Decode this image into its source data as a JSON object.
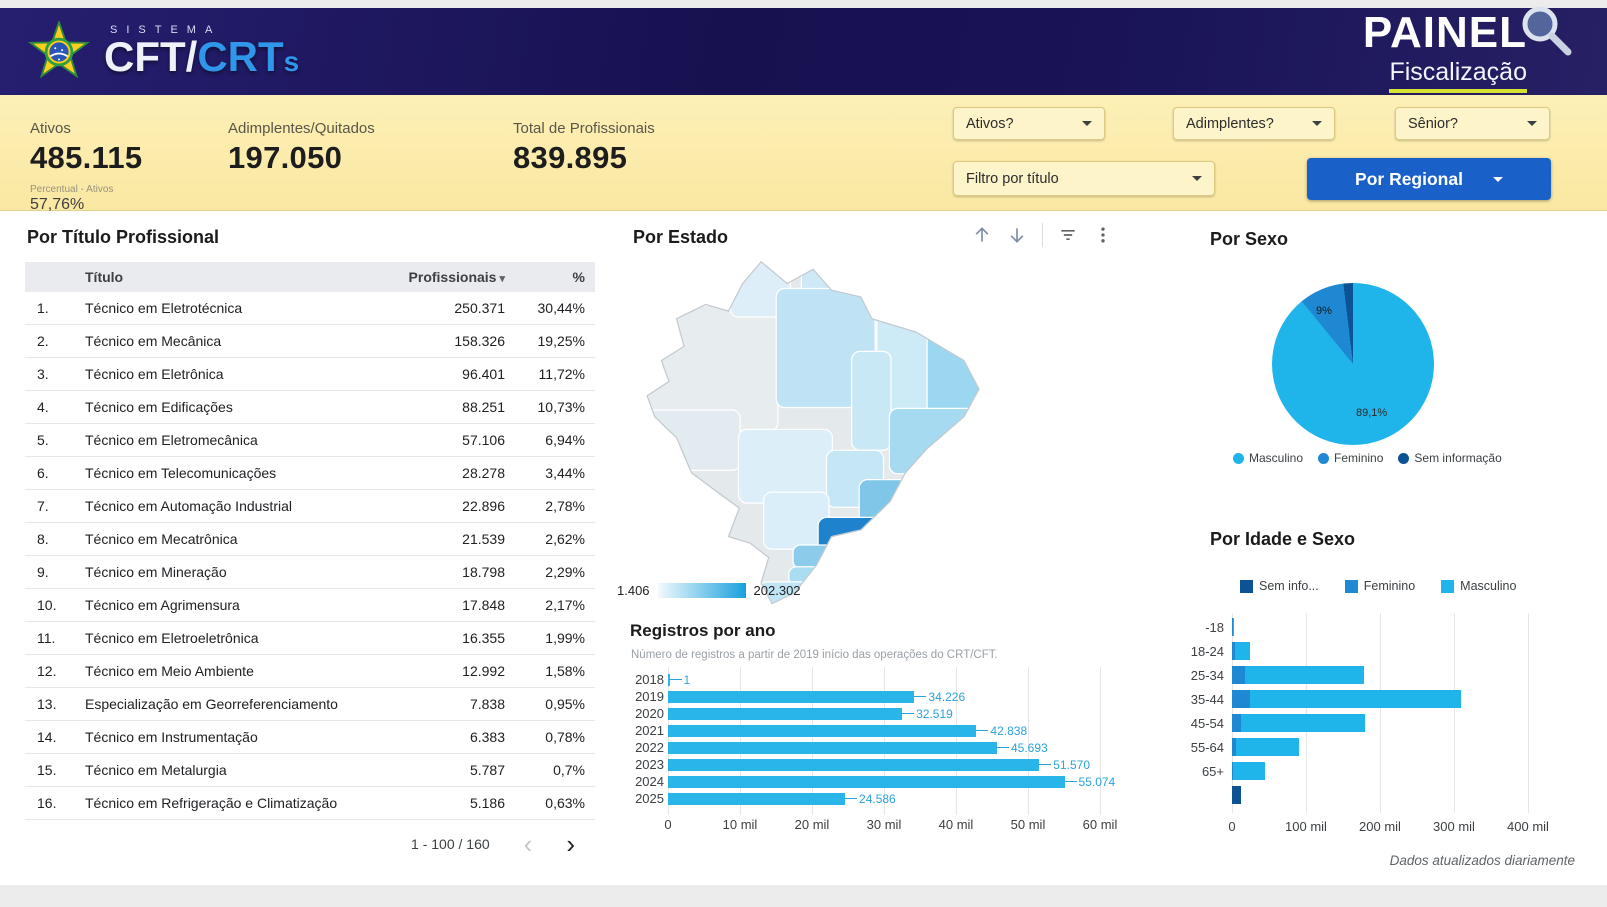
{
  "header": {
    "system_label": "SISTEMA",
    "logo_cft": "CFT",
    "logo_slash": "/",
    "logo_crt": "CRT",
    "logo_s": "s",
    "panel_title": "PAINEL",
    "panel_subtitle": "Fiscalização"
  },
  "kpis": [
    {
      "label": "Ativos",
      "value": "485.115",
      "sub_label": "Percentual - Ativos",
      "sub_value": "57,76%"
    },
    {
      "label": "Adimplentes/Quitados",
      "value": "197.050"
    },
    {
      "label": "Total de Profissionais",
      "value": "839.895"
    }
  ],
  "filters": {
    "ativos": "Ativos?",
    "adimplentes": "Adimplentes?",
    "senior": "Sênior?",
    "titulo": "Filtro por título",
    "regional": "Por Regional"
  },
  "icons": {
    "sort_desc": "▾",
    "chevron_left": "‹",
    "chevron_right": "›"
  },
  "title_table": {
    "heading": "Por Título Profissional",
    "columns": [
      "Título",
      "Profissionais",
      "%"
    ],
    "rows": [
      {
        "rank": "1.",
        "titulo": "Técnico em Eletrotécnica",
        "profissionais": "250.371",
        "pct": "30,44%"
      },
      {
        "rank": "2.",
        "titulo": "Técnico em Mecânica",
        "profissionais": "158.326",
        "pct": "19,25%"
      },
      {
        "rank": "3.",
        "titulo": "Técnico em Eletrônica",
        "profissionais": "96.401",
        "pct": "11,72%"
      },
      {
        "rank": "4.",
        "titulo": "Técnico em Edificações",
        "profissionais": "88.251",
        "pct": "10,73%"
      },
      {
        "rank": "5.",
        "titulo": "Técnico em Eletromecânica",
        "profissionais": "57.106",
        "pct": "6,94%"
      },
      {
        "rank": "6.",
        "titulo": "Técnico em Telecomunicações",
        "profissionais": "28.278",
        "pct": "3,44%"
      },
      {
        "rank": "7.",
        "titulo": "Técnico em Automação Industrial",
        "profissionais": "22.896",
        "pct": "2,78%"
      },
      {
        "rank": "8.",
        "titulo": "Técnico em Mecatrônica",
        "profissionais": "21.539",
        "pct": "2,62%"
      },
      {
        "rank": "9.",
        "titulo": "Técnico em Mineração",
        "profissionais": "18.798",
        "pct": "2,29%"
      },
      {
        "rank": "10.",
        "titulo": "Técnico em Agrimensura",
        "profissionais": "17.848",
        "pct": "2,17%"
      },
      {
        "rank": "11.",
        "titulo": "Técnico em Eletroeletrônica",
        "profissionais": "16.355",
        "pct": "1,99%"
      },
      {
        "rank": "12.",
        "titulo": "Técnico em Meio Ambiente",
        "profissionais": "12.992",
        "pct": "1,58%"
      },
      {
        "rank": "13.",
        "titulo": "Especialização em Georreferenciamento",
        "profissionais": "7.838",
        "pct": "0,95%"
      },
      {
        "rank": "14.",
        "titulo": "Técnico em Instrumentação",
        "profissionais": "6.383",
        "pct": "0,78%"
      },
      {
        "rank": "15.",
        "titulo": "Técnico em Metalurgia",
        "profissionais": "5.787",
        "pct": "0,7%"
      },
      {
        "rank": "16.",
        "titulo": "Técnico em Refrigeração e Climatização",
        "profissionais": "5.186",
        "pct": "0,63%"
      }
    ],
    "pagination": "1 - 100 / 160"
  },
  "estado": {
    "heading": "Por Estado",
    "legend_min": "1.406",
    "legend_max": "202.302"
  },
  "registros": {
    "heading": "Registros por ano",
    "subtitle": "Número de registros a partir de 2019 início das operações do CRT/CFT.",
    "years": [
      "2018",
      "2019",
      "2020",
      "2021",
      "2022",
      "2023",
      "2024",
      "2025"
    ],
    "values": [
      1,
      34226,
      32519,
      42838,
      45693,
      51570,
      55074,
      24586
    ],
    "value_labels": [
      "1",
      "34.226",
      "32.519",
      "42.838",
      "45.693",
      "51.570",
      "55.074",
      "24.586"
    ],
    "x_ticks": [
      "0",
      "10 mil",
      "20 mil",
      "30 mil",
      "40 mil",
      "50 mil",
      "60 mil"
    ],
    "x_max": 60000
  },
  "sexo": {
    "heading": "Por Sexo",
    "slices": [
      {
        "name": "Masculino",
        "pct": 89.1,
        "label": "89,1%",
        "color": "#1fb4ea"
      },
      {
        "name": "Feminino",
        "pct": 9.0,
        "label": "9%",
        "color": "#1e88d2"
      },
      {
        "name": "Sem informação",
        "pct": 1.9,
        "label": "",
        "color": "#0b5394"
      }
    ]
  },
  "idade": {
    "heading": "Por Idade e Sexo",
    "categories": [
      "-18",
      "18-24",
      "25-34",
      "35-44",
      "45-54",
      "55-64",
      "65+",
      ""
    ],
    "series": [
      {
        "name": "Sem info...",
        "color": "#0b5394",
        "values": [
          0,
          0,
          0,
          0,
          0,
          0,
          0,
          12000
        ]
      },
      {
        "name": "Feminino",
        "color": "#1e88d2",
        "values": [
          400,
          4000,
          18000,
          24000,
          12000,
          5000,
          1500,
          0
        ]
      },
      {
        "name": "Masculino",
        "color": "#1fb4ea",
        "values": [
          800,
          21000,
          160000,
          286000,
          168000,
          85000,
          43000,
          0
        ]
      }
    ],
    "x_ticks": [
      "0",
      "100 mil",
      "200 mil",
      "300 mil",
      "400 mil"
    ],
    "x_max": 400000
  },
  "footer_note": "Dados atualizados diariamente",
  "colors": {
    "header_bg": "#1a1458",
    "filter_bar_bg": "#fbeaa6",
    "accent_blue_button": "#1961c8",
    "bar_cyan": "#29b5e8",
    "feminino_blue": "#1e88d2",
    "sem_info_dark": "#0b5394",
    "map_legend_min": "#f2fafd",
    "map_legend_max": "#18a0dc",
    "value_label_cyan": "#2aa3da"
  },
  "chart_data": [
    {
      "type": "bar",
      "orientation": "horizontal",
      "title": "Registros por ano",
      "categories": [
        "2018",
        "2019",
        "2020",
        "2021",
        "2022",
        "2023",
        "2024",
        "2025"
      ],
      "values": [
        1,
        34226,
        32519,
        42838,
        45693,
        51570,
        55074,
        24586
      ],
      "xlabel": "",
      "ylabel": "",
      "xlim": [
        0,
        60000
      ],
      "grid": true
    },
    {
      "type": "pie",
      "title": "Por Sexo",
      "labels": [
        "Masculino",
        "Feminino",
        "Sem informação"
      ],
      "values": [
        89.1,
        9.0,
        1.9
      ],
      "unit": "%",
      "legend_position": "bottom"
    },
    {
      "type": "bar",
      "orientation": "horizontal",
      "stacked": true,
      "title": "Por Idade e Sexo",
      "categories": [
        "-18",
        "18-24",
        "25-34",
        "35-44",
        "45-54",
        "55-64",
        "65+",
        ""
      ],
      "series": [
        {
          "name": "Sem info...",
          "values": [
            0,
            0,
            0,
            0,
            0,
            0,
            0,
            12000
          ]
        },
        {
          "name": "Feminino",
          "values": [
            400,
            4000,
            18000,
            24000,
            12000,
            5000,
            1500,
            0
          ]
        },
        {
          "name": "Masculino",
          "values": [
            800,
            21000,
            160000,
            286000,
            168000,
            85000,
            43000,
            0
          ]
        }
      ],
      "xlim": [
        0,
        400000
      ],
      "legend_position": "top",
      "grid": true
    },
    {
      "type": "heatmap",
      "subtype": "choropleth",
      "title": "Por Estado",
      "region": "Brazil states",
      "min": 1406,
      "max": 202302
    }
  ]
}
